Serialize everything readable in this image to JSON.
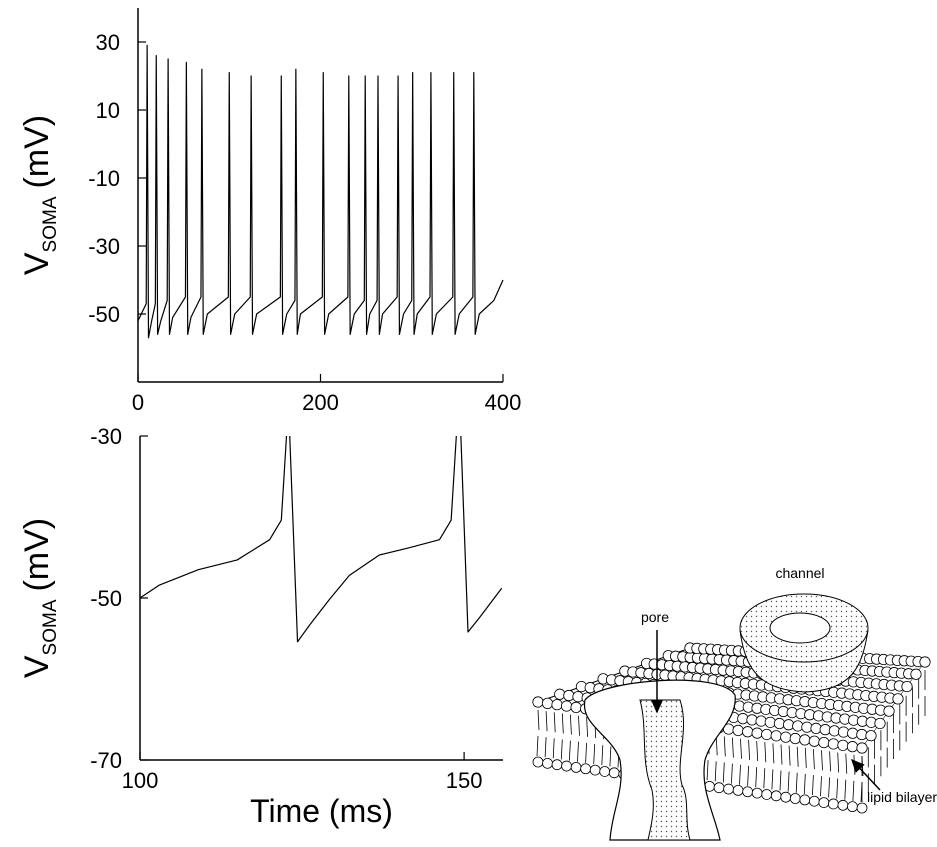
{
  "chart_data": [
    {
      "type": "line",
      "color": "#000000",
      "ylabel": "V",
      "ylabel_sub": "SOMA",
      "ylabel_unit": "(mV)",
      "xlim": [
        0,
        400
      ],
      "xticks": [
        0,
        200,
        400
      ],
      "ylim": [
        -70,
        40
      ],
      "yticks": [
        -50,
        -30,
        -10,
        10,
        30
      ],
      "x": [
        0,
        9,
        10,
        11.5,
        15,
        19,
        20,
        21.5,
        25,
        32,
        33,
        34.5,
        38,
        52,
        53,
        54.5,
        58,
        69,
        70,
        71.5,
        76,
        99,
        100,
        101.5,
        106,
        123,
        124,
        125.5,
        130,
        156,
        157,
        158.5,
        163,
        172,
        173,
        174.5,
        178,
        202,
        203,
        204.5,
        209,
        230,
        231,
        232.5,
        237,
        248,
        249,
        250.5,
        254,
        262,
        263,
        264.5,
        268,
        284,
        285,
        286.5,
        291,
        300,
        301,
        302.5,
        306,
        320,
        321,
        322.5,
        327,
        345,
        346,
        347.5,
        352,
        367,
        368,
        369.5,
        374,
        390,
        400
      ],
      "values": [
        -52,
        -47,
        29,
        -57,
        -52,
        -47,
        26,
        -56,
        -52,
        -46,
        25,
        -56,
        -51,
        -45,
        24,
        -56,
        -51,
        -45,
        22,
        -56,
        -50,
        -45,
        21,
        -56,
        -50,
        -45,
        20,
        -56,
        -50,
        -45,
        20,
        -56,
        -50,
        -46,
        22,
        -56,
        -50,
        -45,
        21,
        -56,
        -50,
        -45,
        20,
        -56,
        -50,
        -46,
        20,
        -56,
        -50,
        -46,
        20,
        -56,
        -50,
        -45,
        20,
        -56,
        -50,
        -46,
        21,
        -56,
        -50,
        -45,
        21,
        -56,
        -50,
        -45,
        21,
        -56,
        -50,
        -45,
        21,
        -56,
        -50,
        -46,
        -40
      ]
    },
    {
      "type": "line",
      "color": "#000000",
      "ylabel": "V",
      "ylabel_sub": "SOMA",
      "ylabel_unit": "(mV)",
      "xlabel": "Time (ms)",
      "xlim": [
        100,
        156
      ],
      "xticks": [
        100,
        150
      ],
      "ylim": [
        -70,
        -30
      ],
      "yticks": [
        -70,
        -50,
        -30
      ],
      "x": [
        100,
        103,
        109,
        115,
        120,
        121.8,
        122.6,
        null,
        123.1,
        124.3,
        126.2,
        129.2,
        132.3,
        136.9,
        141.5,
        146.2,
        148,
        148.8,
        null,
        149.5,
        150.6,
        152.3,
        155.8
      ],
      "values": [
        -50,
        -48.4,
        -46.5,
        -45.3,
        -42.8,
        -40.4,
        -30,
        null,
        -30,
        -55.4,
        -53.3,
        -50.2,
        -47.2,
        -44.7,
        -43.8,
        -42.8,
        -40.4,
        -30,
        null,
        -30,
        -54.2,
        -52.5,
        -48.8
      ]
    }
  ],
  "diagram": {
    "channel": "channel",
    "pore": "pore",
    "bilayer": "lipid bilayer"
  }
}
